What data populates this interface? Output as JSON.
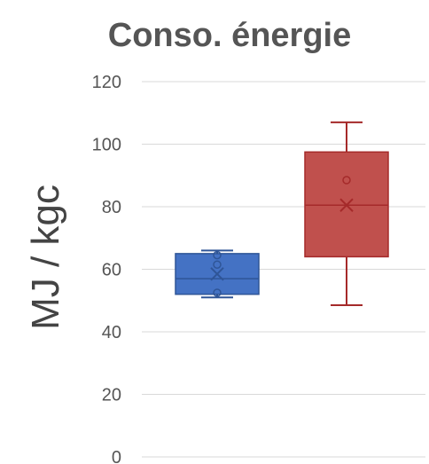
{
  "chart_data": {
    "type": "box",
    "title": "Conso. énergie",
    "xlabel": "",
    "ylabel": "MJ / kgc",
    "ylim": [
      0,
      120
    ],
    "yticks": [
      0,
      20,
      40,
      60,
      80,
      100,
      120
    ],
    "grid": true,
    "legend": "none",
    "series": [
      {
        "color": "#4472C4",
        "edge": "#2F5597",
        "min": 51,
        "q1": 52,
        "median": 57,
        "q3": 65,
        "max": 66,
        "mean": 58.5,
        "points": [
          52.5,
          61.5,
          64.5
        ]
      },
      {
        "color": "#C0504D",
        "edge": "#A52A2A",
        "min": 48.5,
        "q1": 64,
        "median": 80.5,
        "q3": 97.5,
        "max": 107,
        "mean": 80.5,
        "points": [
          88.5
        ]
      }
    ]
  }
}
